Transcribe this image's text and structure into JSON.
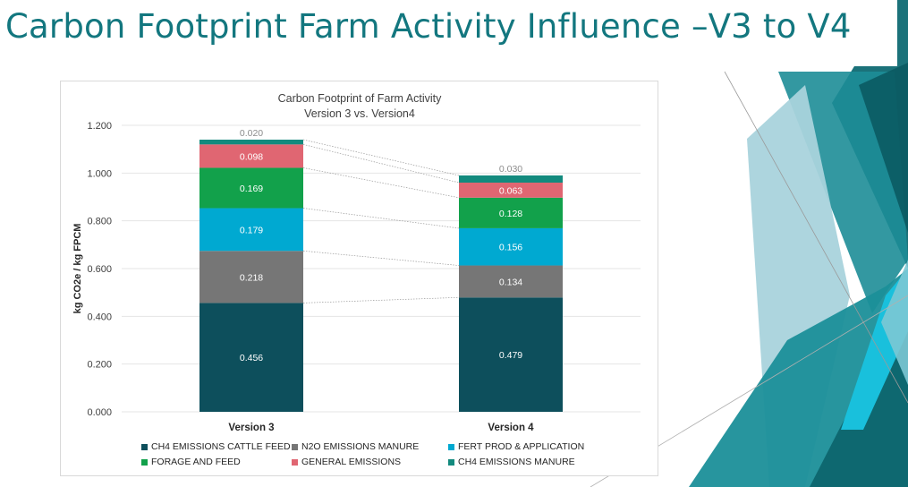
{
  "slide": {
    "title": "Carbon Footprint Farm Activity Influence –V3 to V4"
  },
  "colors": {
    "title": "#13777f",
    "ch4_cattle_feed": "#0d4f5c",
    "n2o_manure": "#767676",
    "fert_prod": "#00a9d1",
    "forage_feed": "#12a14b",
    "general": "#e06672",
    "ch4_manure": "#138a7e",
    "deco_dark": "#13777f",
    "deco_light": "#a9d3dc",
    "deco_cyan": "#19c0dc"
  },
  "chart_data": {
    "type": "bar",
    "stacked": true,
    "title": "Carbon Footprint of Farm Activity",
    "subtitle": "Version 3 vs. Version4",
    "ylabel": "kg CO2e / kg FPCM",
    "xlabel": "",
    "ylim": [
      0,
      1.2
    ],
    "yticks": [
      "0.000",
      "0.200",
      "0.400",
      "0.600",
      "0.800",
      "1.000",
      "1.200"
    ],
    "categories": [
      "Version 3",
      "Version 4"
    ],
    "grid": true,
    "legend_position": "bottom",
    "series": [
      {
        "name": "CH4 EMISSIONS CATTLE FEED",
        "values": [
          0.456,
          0.479
        ],
        "labels": [
          "0.456",
          "0.479"
        ],
        "color": "#0d4f5c"
      },
      {
        "name": "N2O EMISSIONS MANURE",
        "values": [
          0.218,
          0.134
        ],
        "labels": [
          "0.218",
          "0.134"
        ],
        "color": "#767676"
      },
      {
        "name": "FERT PROD & APPLICATION",
        "values": [
          0.179,
          0.156
        ],
        "labels": [
          "0.179",
          "0.156"
        ],
        "color": "#00a9d1"
      },
      {
        "name": "FORAGE AND FEED",
        "values": [
          0.169,
          0.128
        ],
        "labels": [
          "0.169",
          "0.128"
        ],
        "color": "#12a14b"
      },
      {
        "name": "GENERAL EMISSIONS",
        "values": [
          0.098,
          0.063
        ],
        "labels": [
          "0.098",
          "0.063"
        ],
        "color": "#e06672"
      },
      {
        "name": "CH4 EMISSIONS MANURE",
        "values": [
          0.02,
          0.03
        ],
        "labels": [
          "0.020",
          "0.030"
        ],
        "color": "#138a7e"
      }
    ]
  }
}
